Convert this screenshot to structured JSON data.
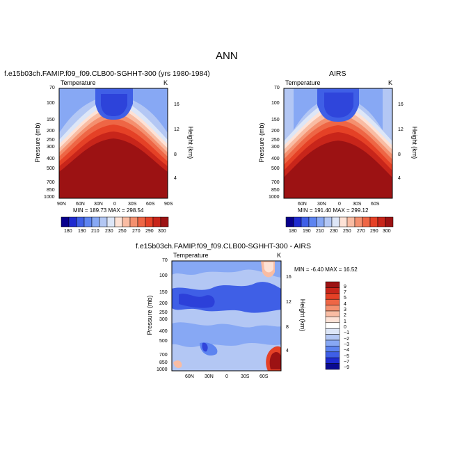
{
  "page": {
    "title": "ANN"
  },
  "chart_data": [
    {
      "type": "heatmap",
      "title": "f.e15b03ch.FAMIP.f09_f09.CLB00-SGHHT-300 (yrs 1980-1984)",
      "left_label": "Temperature",
      "right_label": "K",
      "xlabel": "",
      "ylabel": "Pressure (mb)",
      "y2label": "Height (km)",
      "x_ticks": [
        "90N",
        "60N",
        "30N",
        "0",
        "30S",
        "60S",
        "90S"
      ],
      "x_values": [
        -90,
        -60,
        -30,
        0,
        30,
        60,
        90
      ],
      "y_ticks": [
        "70",
        "100",
        "150",
        "200",
        "250",
        "300",
        "400",
        "500",
        "700",
        "850",
        "1000"
      ],
      "y_values": [
        70,
        100,
        150,
        200,
        250,
        300,
        400,
        500,
        700,
        850,
        1000
      ],
      "y2_ticks": [
        "16",
        "12",
        "8",
        "4"
      ],
      "y2_values": [
        16,
        12,
        8,
        4
      ],
      "stats": "MIN = 189.73   MAX = 298.54",
      "min": 189.73,
      "max": 298.54,
      "colorbar_labels": [
        "180",
        "190",
        "210",
        "230",
        "250",
        "270",
        "290",
        "300"
      ]
    },
    {
      "type": "heatmap",
      "title": "AIRS",
      "left_label": "Temperature",
      "right_label": "K",
      "ylabel": "Pressure (mb)",
      "y2label": "Height (km)",
      "x_ticks": [
        "60N",
        "30N",
        "0",
        "30S",
        "60S"
      ],
      "x_values": [
        -60,
        -30,
        0,
        30,
        60
      ],
      "y_ticks": [
        "70",
        "100",
        "150",
        "200",
        "250",
        "300",
        "400",
        "500",
        "700",
        "850",
        "1000"
      ],
      "y_values": [
        70,
        100,
        150,
        200,
        250,
        300,
        400,
        500,
        700,
        850,
        1000
      ],
      "y2_ticks": [
        "16",
        "12",
        "8",
        "4"
      ],
      "y2_values": [
        16,
        12,
        8,
        4
      ],
      "stats": "MIN = 191.40   MAX = 299.12",
      "min": 191.4,
      "max": 299.12,
      "colorbar_labels": [
        "180",
        "190",
        "210",
        "230",
        "250",
        "270",
        "290",
        "300"
      ]
    },
    {
      "type": "heatmap",
      "title": "f.e15b03ch.FAMIP.f09_f09.CLB00-SGHHT-300 - AIRS",
      "left_label": "Temperature",
      "right_label": "K",
      "ylabel": "Pressure (mb)",
      "y2label": "Height (km)",
      "x_ticks": [
        "60N",
        "30N",
        "0",
        "30S",
        "60S"
      ],
      "x_values": [
        -60,
        -30,
        0,
        30,
        60
      ],
      "y_ticks": [
        "70",
        "100",
        "150",
        "200",
        "250",
        "300",
        "400",
        "500",
        "700",
        "850",
        "1000"
      ],
      "y_values": [
        70,
        100,
        150,
        200,
        250,
        300,
        400,
        500,
        700,
        850,
        1000
      ],
      "y2_ticks": [
        "16",
        "12",
        "8",
        "4"
      ],
      "y2_values": [
        16,
        12,
        8,
        4
      ],
      "stats": "MIN =  -6.40   MAX =  16.52",
      "min": -6.4,
      "max": 16.52,
      "colorbar_labels": [
        "9",
        "7",
        "5",
        "4",
        "3",
        "2",
        "1",
        "0",
        "−1",
        "−2",
        "−3",
        "−4",
        "−5",
        "−7",
        "−9"
      ]
    }
  ],
  "colors": {
    "abs_scale": [
      "#08008c",
      "#1f2bd0",
      "#3f5fe6",
      "#5d84f0",
      "#87a8f4",
      "#b3c7f4",
      "#dde6f7",
      "#fde2d6",
      "#f9bca3",
      "#f4906f",
      "#ee6645",
      "#e54126",
      "#c8251a",
      "#9c1213"
    ],
    "diff_scale": [
      "#9c1213",
      "#c8251a",
      "#e54126",
      "#ee6645",
      "#f4906f",
      "#f9bca3",
      "#fde2d6",
      "#ffffff",
      "#dde6f7",
      "#b3c7f4",
      "#87a8f4",
      "#5d84f0",
      "#3f5fe6",
      "#1f2bd0",
      "#0a0a90"
    ]
  }
}
